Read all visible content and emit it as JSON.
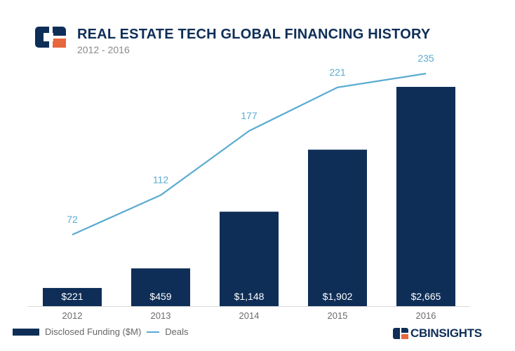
{
  "header": {
    "title": "REAL ESTATE TECH GLOBAL FINANCING HISTORY",
    "subtitle": "2012 - 2016",
    "logo_icon": "cb-insights-logo-icon"
  },
  "colors": {
    "bar": "#0e2e57",
    "line": "#5aabd1",
    "line_label": "#5aabd1",
    "bar_label": "#ffffff",
    "axis_text": "#6b6b6b",
    "logo_blue": "#0e2e57",
    "logo_orange": "#e8673c"
  },
  "chart_data": {
    "type": "bar",
    "categories": [
      "2012",
      "2013",
      "2014",
      "2015",
      "2016"
    ],
    "series": [
      {
        "name": "Disclosed Funding ($M)",
        "type": "bar",
        "values": [
          221,
          459,
          1148,
          1902,
          2665
        ],
        "labels": [
          "$221",
          "$459",
          "$1,148",
          "$1,902",
          "$2,665"
        ]
      },
      {
        "name": "Deals",
        "type": "line",
        "values": [
          72,
          112,
          177,
          221,
          235
        ],
        "labels": [
          "72",
          "112",
          "177",
          "221",
          "235"
        ]
      }
    ],
    "title": "REAL ESTATE TECH GLOBAL FINANCING HISTORY",
    "subtitle": "2012 - 2016",
    "legend_position": "bottom-left",
    "grid": false
  },
  "legend": {
    "bar_label": "Disclosed Funding ($M)",
    "line_label": "Deals"
  },
  "brand": {
    "text": "CBINSIGHTS"
  }
}
